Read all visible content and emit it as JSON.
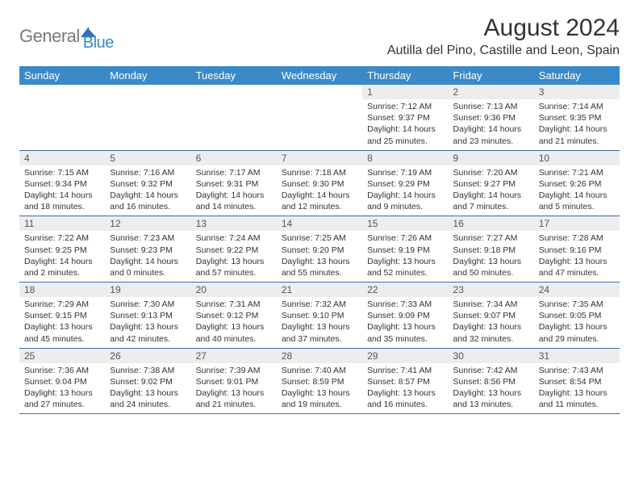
{
  "brand": {
    "general": "General",
    "blue": "Blue"
  },
  "title": {
    "month": "August 2024",
    "location": "Autilla del Pino, Castille and Leon, Spain"
  },
  "theme": {
    "header_bg": "#3a8ac9",
    "row_border": "#3a6fa8",
    "daynum_bg": "#ededed"
  },
  "day_names": [
    "Sunday",
    "Monday",
    "Tuesday",
    "Wednesday",
    "Thursday",
    "Friday",
    "Saturday"
  ],
  "weeks": [
    [
      {
        "n": "",
        "empty": true
      },
      {
        "n": "",
        "empty": true
      },
      {
        "n": "",
        "empty": true
      },
      {
        "n": "",
        "empty": true
      },
      {
        "n": "1",
        "sr": "7:12 AM",
        "ss": "9:37 PM",
        "d1": "Daylight: 14 hours",
        "d2": "and 25 minutes."
      },
      {
        "n": "2",
        "sr": "7:13 AM",
        "ss": "9:36 PM",
        "d1": "Daylight: 14 hours",
        "d2": "and 23 minutes."
      },
      {
        "n": "3",
        "sr": "7:14 AM",
        "ss": "9:35 PM",
        "d1": "Daylight: 14 hours",
        "d2": "and 21 minutes."
      }
    ],
    [
      {
        "n": "4",
        "sr": "7:15 AM",
        "ss": "9:34 PM",
        "d1": "Daylight: 14 hours",
        "d2": "and 18 minutes."
      },
      {
        "n": "5",
        "sr": "7:16 AM",
        "ss": "9:32 PM",
        "d1": "Daylight: 14 hours",
        "d2": "and 16 minutes."
      },
      {
        "n": "6",
        "sr": "7:17 AM",
        "ss": "9:31 PM",
        "d1": "Daylight: 14 hours",
        "d2": "and 14 minutes."
      },
      {
        "n": "7",
        "sr": "7:18 AM",
        "ss": "9:30 PM",
        "d1": "Daylight: 14 hours",
        "d2": "and 12 minutes."
      },
      {
        "n": "8",
        "sr": "7:19 AM",
        "ss": "9:29 PM",
        "d1": "Daylight: 14 hours",
        "d2": "and 9 minutes."
      },
      {
        "n": "9",
        "sr": "7:20 AM",
        "ss": "9:27 PM",
        "d1": "Daylight: 14 hours",
        "d2": "and 7 minutes."
      },
      {
        "n": "10",
        "sr": "7:21 AM",
        "ss": "9:26 PM",
        "d1": "Daylight: 14 hours",
        "d2": "and 5 minutes."
      }
    ],
    [
      {
        "n": "11",
        "sr": "7:22 AM",
        "ss": "9:25 PM",
        "d1": "Daylight: 14 hours",
        "d2": "and 2 minutes."
      },
      {
        "n": "12",
        "sr": "7:23 AM",
        "ss": "9:23 PM",
        "d1": "Daylight: 14 hours",
        "d2": "and 0 minutes."
      },
      {
        "n": "13",
        "sr": "7:24 AM",
        "ss": "9:22 PM",
        "d1": "Daylight: 13 hours",
        "d2": "and 57 minutes."
      },
      {
        "n": "14",
        "sr": "7:25 AM",
        "ss": "9:20 PM",
        "d1": "Daylight: 13 hours",
        "d2": "and 55 minutes."
      },
      {
        "n": "15",
        "sr": "7:26 AM",
        "ss": "9:19 PM",
        "d1": "Daylight: 13 hours",
        "d2": "and 52 minutes."
      },
      {
        "n": "16",
        "sr": "7:27 AM",
        "ss": "9:18 PM",
        "d1": "Daylight: 13 hours",
        "d2": "and 50 minutes."
      },
      {
        "n": "17",
        "sr": "7:28 AM",
        "ss": "9:16 PM",
        "d1": "Daylight: 13 hours",
        "d2": "and 47 minutes."
      }
    ],
    [
      {
        "n": "18",
        "sr": "7:29 AM",
        "ss": "9:15 PM",
        "d1": "Daylight: 13 hours",
        "d2": "and 45 minutes."
      },
      {
        "n": "19",
        "sr": "7:30 AM",
        "ss": "9:13 PM",
        "d1": "Daylight: 13 hours",
        "d2": "and 42 minutes."
      },
      {
        "n": "20",
        "sr": "7:31 AM",
        "ss": "9:12 PM",
        "d1": "Daylight: 13 hours",
        "d2": "and 40 minutes."
      },
      {
        "n": "21",
        "sr": "7:32 AM",
        "ss": "9:10 PM",
        "d1": "Daylight: 13 hours",
        "d2": "and 37 minutes."
      },
      {
        "n": "22",
        "sr": "7:33 AM",
        "ss": "9:09 PM",
        "d1": "Daylight: 13 hours",
        "d2": "and 35 minutes."
      },
      {
        "n": "23",
        "sr": "7:34 AM",
        "ss": "9:07 PM",
        "d1": "Daylight: 13 hours",
        "d2": "and 32 minutes."
      },
      {
        "n": "24",
        "sr": "7:35 AM",
        "ss": "9:05 PM",
        "d1": "Daylight: 13 hours",
        "d2": "and 29 minutes."
      }
    ],
    [
      {
        "n": "25",
        "sr": "7:36 AM",
        "ss": "9:04 PM",
        "d1": "Daylight: 13 hours",
        "d2": "and 27 minutes."
      },
      {
        "n": "26",
        "sr": "7:38 AM",
        "ss": "9:02 PM",
        "d1": "Daylight: 13 hours",
        "d2": "and 24 minutes."
      },
      {
        "n": "27",
        "sr": "7:39 AM",
        "ss": "9:01 PM",
        "d1": "Daylight: 13 hours",
        "d2": "and 21 minutes."
      },
      {
        "n": "28",
        "sr": "7:40 AM",
        "ss": "8:59 PM",
        "d1": "Daylight: 13 hours",
        "d2": "and 19 minutes."
      },
      {
        "n": "29",
        "sr": "7:41 AM",
        "ss": "8:57 PM",
        "d1": "Daylight: 13 hours",
        "d2": "and 16 minutes."
      },
      {
        "n": "30",
        "sr": "7:42 AM",
        "ss": "8:56 PM",
        "d1": "Daylight: 13 hours",
        "d2": "and 13 minutes."
      },
      {
        "n": "31",
        "sr": "7:43 AM",
        "ss": "8:54 PM",
        "d1": "Daylight: 13 hours",
        "d2": "and 11 minutes."
      }
    ]
  ],
  "labels": {
    "sunrise": "Sunrise: ",
    "sunset": "Sunset: "
  }
}
